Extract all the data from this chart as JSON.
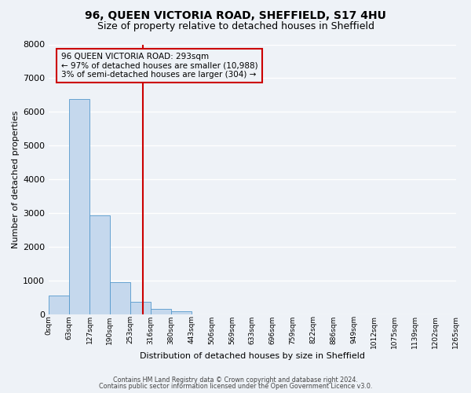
{
  "title": "96, QUEEN VICTORIA ROAD, SHEFFIELD, S17 4HU",
  "subtitle": "Size of property relative to detached houses in Sheffield",
  "xlabel": "Distribution of detached houses by size in Sheffield",
  "ylabel": "Number of detached properties",
  "bin_labels": [
    "0sqm",
    "63sqm",
    "127sqm",
    "190sqm",
    "253sqm",
    "316sqm",
    "380sqm",
    "443sqm",
    "506sqm",
    "569sqm",
    "633sqm",
    "696sqm",
    "759sqm",
    "822sqm",
    "886sqm",
    "949sqm",
    "1012sqm",
    "1075sqm",
    "1139sqm",
    "1202sqm",
    "1265sqm"
  ],
  "bar_values": [
    550,
    6370,
    2940,
    960,
    370,
    160,
    80,
    0,
    0,
    0,
    0,
    0,
    0,
    0,
    0,
    0,
    0,
    0,
    0,
    0
  ],
  "bar_color": "#c5d8ed",
  "bar_edge_color": "#5599cc",
  "vline_color": "#cc0000",
  "ylim": [
    0,
    8000
  ],
  "yticks": [
    0,
    1000,
    2000,
    3000,
    4000,
    5000,
    6000,
    7000,
    8000
  ],
  "annotation_line1": "96 QUEEN VICTORIA ROAD: 293sqm",
  "annotation_line2": "← 97% of detached houses are smaller (10,988)",
  "annotation_line3": "3% of semi-detached houses are larger (304) →",
  "annotation_box_color": "#cc0000",
  "footer_line1": "Contains HM Land Registry data © Crown copyright and database right 2024.",
  "footer_line2": "Contains public sector information licensed under the Open Government Licence v3.0.",
  "background_color": "#eef2f7",
  "grid_color": "#ffffff",
  "title_fontsize": 10,
  "subtitle_fontsize": 9
}
